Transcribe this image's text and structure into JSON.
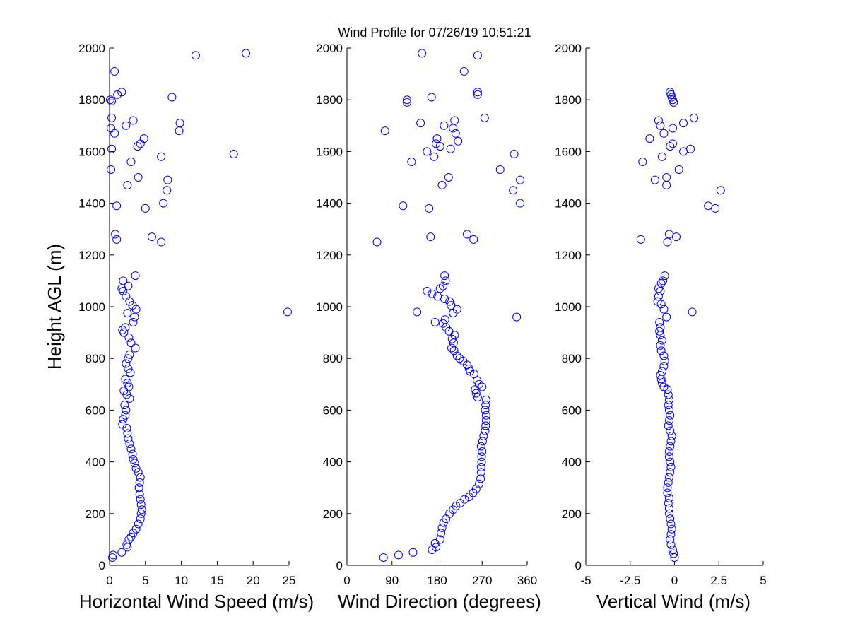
{
  "figure": {
    "title": "Wind Profile for  07/26/19 10:51:21"
  },
  "chart_data": [
    {
      "type": "scatter",
      "xlabel": "Horizontal Wind Speed (m/s)",
      "ylabel": "Height AGL (m)",
      "xlim": [
        0,
        25
      ],
      "ylim": [
        0,
        2000
      ],
      "xticks": [
        0,
        5,
        10,
        15,
        20,
        25
      ],
      "xtick_labels": [
        "0",
        "5",
        "10",
        "15",
        "20",
        "25"
      ],
      "yticks": [
        0,
        200,
        400,
        600,
        800,
        1000,
        1200,
        1400,
        1600,
        1800,
        2000
      ],
      "ytick_labels": [
        "0",
        "200",
        "400",
        "600",
        "800",
        "1000",
        "1200",
        "1400",
        "1600",
        "1800",
        "2000"
      ],
      "marker": "circle",
      "color": "#0000ff",
      "points": [
        [
          0.4,
          30
        ],
        [
          0.5,
          40
        ],
        [
          1.7,
          50
        ],
        [
          2.5,
          70
        ],
        [
          2.4,
          80
        ],
        [
          2.7,
          100
        ],
        [
          3.0,
          110
        ],
        [
          3.3,
          125
        ],
        [
          3.7,
          140
        ],
        [
          4.0,
          160
        ],
        [
          4.3,
          180
        ],
        [
          4.4,
          200
        ],
        [
          4.5,
          215
        ],
        [
          4.4,
          235
        ],
        [
          4.3,
          255
        ],
        [
          4.2,
          275
        ],
        [
          4.1,
          300
        ],
        [
          4.2,
          320
        ],
        [
          4.3,
          340
        ],
        [
          4.0,
          360
        ],
        [
          3.7,
          375
        ],
        [
          3.5,
          395
        ],
        [
          3.3,
          410
        ],
        [
          3.2,
          430
        ],
        [
          3.0,
          450
        ],
        [
          2.8,
          470
        ],
        [
          2.6,
          490
        ],
        [
          2.5,
          510
        ],
        [
          2.4,
          530
        ],
        [
          1.8,
          545
        ],
        [
          1.9,
          565
        ],
        [
          2.2,
          580
        ],
        [
          2.3,
          600
        ],
        [
          2.1,
          620
        ],
        [
          2.8,
          645
        ],
        [
          2.4,
          660
        ],
        [
          2.0,
          675
        ],
        [
          2.7,
          690
        ],
        [
          2.5,
          705
        ],
        [
          2.2,
          720
        ],
        [
          2.9,
          745
        ],
        [
          2.6,
          760
        ],
        [
          2.3,
          780
        ],
        [
          2.6,
          800
        ],
        [
          2.8,
          815
        ],
        [
          3.6,
          840
        ],
        [
          3.0,
          860
        ],
        [
          2.7,
          880
        ],
        [
          2.0,
          900
        ],
        [
          1.8,
          910
        ],
        [
          2.2,
          920
        ],
        [
          3.3,
          940
        ],
        [
          3.5,
          960
        ],
        [
          2.5,
          975
        ],
        [
          3.7,
          990
        ],
        [
          3.2,
          1005
        ],
        [
          2.8,
          1020
        ],
        [
          2.3,
          1040
        ],
        [
          1.9,
          1060
        ],
        [
          1.7,
          1070
        ],
        [
          2.6,
          1080
        ],
        [
          1.9,
          1100
        ],
        [
          3.6,
          1120
        ],
        [
          7.2,
          1250
        ],
        [
          1.0,
          1260
        ],
        [
          5.9,
          1270
        ],
        [
          0.8,
          1280
        ],
        [
          5.0,
          1380
        ],
        [
          1.0,
          1390
        ],
        [
          7.5,
          1400
        ],
        [
          8.0,
          1450
        ],
        [
          2.5,
          1470
        ],
        [
          8.1,
          1490
        ],
        [
          4.0,
          1500
        ],
        [
          0.2,
          1530
        ],
        [
          3.0,
          1560
        ],
        [
          7.2,
          1580
        ],
        [
          17.3,
          1590
        ],
        [
          0.3,
          1610
        ],
        [
          3.9,
          1620
        ],
        [
          4.3,
          1630
        ],
        [
          4.8,
          1650
        ],
        [
          0.7,
          1670
        ],
        [
          9.7,
          1680
        ],
        [
          0.2,
          1690
        ],
        [
          2.3,
          1700
        ],
        [
          9.8,
          1710
        ],
        [
          3.3,
          1720
        ],
        [
          0.3,
          1730
        ],
        [
          0.1,
          1800
        ],
        [
          0.3,
          1795
        ],
        [
          1.1,
          1820
        ],
        [
          8.7,
          1810
        ],
        [
          1.7,
          1830
        ],
        [
          0.7,
          1910
        ],
        [
          12.0,
          1972
        ],
        [
          19.0,
          1980
        ],
        [
          24.8,
          980
        ]
      ]
    },
    {
      "type": "scatter",
      "xlabel": "Wind Direction (degrees)",
      "ylabel": "",
      "xlim": [
        0,
        360
      ],
      "ylim": [
        0,
        2000
      ],
      "xticks": [
        0,
        90,
        180,
        270,
        360
      ],
      "xtick_labels": [
        "0",
        "90",
        "180",
        "270",
        "360"
      ],
      "yticks": [
        0,
        200,
        400,
        600,
        800,
        1000,
        1200,
        1400,
        1600,
        1800,
        2000
      ],
      "ytick_labels": [
        "0",
        "200",
        "400",
        "600",
        "800",
        "1000",
        "1200",
        "1400",
        "1600",
        "1800",
        "2000"
      ],
      "marker": "circle",
      "color": "#0000ff",
      "points": [
        [
          73,
          30
        ],
        [
          103,
          40
        ],
        [
          132,
          50
        ],
        [
          170,
          60
        ],
        [
          178,
          70
        ],
        [
          176,
          85
        ],
        [
          186,
          100
        ],
        [
          188,
          125
        ],
        [
          190,
          145
        ],
        [
          193,
          165
        ],
        [
          198,
          180
        ],
        [
          205,
          200
        ],
        [
          212,
          215
        ],
        [
          218,
          230
        ],
        [
          226,
          240
        ],
        [
          235,
          255
        ],
        [
          244,
          265
        ],
        [
          252,
          280
        ],
        [
          258,
          295
        ],
        [
          264,
          315
        ],
        [
          267,
          335
        ],
        [
          268,
          360
        ],
        [
          268,
          380
        ],
        [
          269,
          400
        ],
        [
          269,
          420
        ],
        [
          270,
          440
        ],
        [
          268,
          460
        ],
        [
          271,
          480
        ],
        [
          273,
          500
        ],
        [
          276,
          520
        ],
        [
          277,
          540
        ],
        [
          278,
          560
        ],
        [
          278,
          580
        ],
        [
          276,
          600
        ],
        [
          277,
          620
        ],
        [
          278,
          640
        ],
        [
          261,
          650
        ],
        [
          258,
          665
        ],
        [
          256,
          680
        ],
        [
          270,
          690
        ],
        [
          264,
          700
        ],
        [
          260,
          715
        ],
        [
          254,
          740
        ],
        [
          246,
          750
        ],
        [
          244,
          760
        ],
        [
          240,
          775
        ],
        [
          232,
          790
        ],
        [
          225,
          800
        ],
        [
          220,
          810
        ],
        [
          214,
          830
        ],
        [
          209,
          840
        ],
        [
          213,
          860
        ],
        [
          210,
          875
        ],
        [
          215,
          890
        ],
        [
          204,
          905
        ],
        [
          198,
          920
        ],
        [
          192,
          935
        ],
        [
          196,
          950
        ],
        [
          212,
          975
        ],
        [
          220,
          990
        ],
        [
          208,
          1005
        ],
        [
          205,
          1020
        ],
        [
          195,
          1030
        ],
        [
          181,
          1040
        ],
        [
          170,
          1050
        ],
        [
          160,
          1060
        ],
        [
          186,
          1070
        ],
        [
          192,
          1080
        ],
        [
          197,
          1100
        ],
        [
          195,
          1120
        ],
        [
          140,
          980
        ],
        [
          176,
          940
        ],
        [
          339,
          960
        ],
        [
          60,
          1250
        ],
        [
          167,
          1270
        ],
        [
          240,
          1280
        ],
        [
          253,
          1260
        ],
        [
          112,
          1390
        ],
        [
          164,
          1380
        ],
        [
          346,
          1400
        ],
        [
          332,
          1450
        ],
        [
          190,
          1470
        ],
        [
          346,
          1490
        ],
        [
          203,
          1500
        ],
        [
          306,
          1530
        ],
        [
          129,
          1560
        ],
        [
          174,
          1580
        ],
        [
          334,
          1590
        ],
        [
          160,
          1600
        ],
        [
          186,
          1620
        ],
        [
          178,
          1630
        ],
        [
          222,
          1640
        ],
        [
          180,
          1650
        ],
        [
          217,
          1670
        ],
        [
          76,
          1680
        ],
        [
          212,
          1690
        ],
        [
          147,
          1710
        ],
        [
          194,
          1700
        ],
        [
          215,
          1720
        ],
        [
          275,
          1730
        ],
        [
          120,
          1790
        ],
        [
          120,
          1800
        ],
        [
          169,
          1810
        ],
        [
          261,
          1820
        ],
        [
          261,
          1830
        ],
        [
          234,
          1910
        ],
        [
          150,
          1980
        ],
        [
          261,
          1972
        ],
        [
          207,
          1610
        ]
      ]
    },
    {
      "type": "scatter",
      "xlabel": "Vertical Wind (m/s)",
      "ylabel": "",
      "xlim": [
        -5,
        5
      ],
      "ylim": [
        0,
        2000
      ],
      "xticks": [
        -5,
        -2.5,
        0,
        2.5,
        5
      ],
      "xtick_labels": [
        "-5",
        "-2.5",
        "0",
        "2.5",
        "5"
      ],
      "yticks": [
        0,
        200,
        400,
        600,
        800,
        1000,
        1200,
        1400,
        1600,
        1800,
        2000
      ],
      "ytick_labels": [
        "0",
        "200",
        "400",
        "600",
        "800",
        "1000",
        "1200",
        "1400",
        "1600",
        "1800",
        "2000"
      ],
      "marker": "circle",
      "color": "#0000ff",
      "points": [
        [
          0.0,
          30
        ],
        [
          -0.05,
          45
        ],
        [
          -0.1,
          60
        ],
        [
          -0.2,
          80
        ],
        [
          -0.25,
          100
        ],
        [
          -0.2,
          120
        ],
        [
          -0.15,
          140
        ],
        [
          -0.2,
          160
        ],
        [
          -0.25,
          180
        ],
        [
          -0.3,
          200
        ],
        [
          -0.3,
          220
        ],
        [
          -0.35,
          240
        ],
        [
          -0.3,
          260
        ],
        [
          -0.4,
          280
        ],
        [
          -0.4,
          300
        ],
        [
          -0.35,
          320
        ],
        [
          -0.3,
          340
        ],
        [
          -0.25,
          360
        ],
        [
          -0.2,
          380
        ],
        [
          -0.25,
          400
        ],
        [
          -0.3,
          420
        ],
        [
          -0.3,
          440
        ],
        [
          -0.25,
          460
        ],
        [
          -0.2,
          480
        ],
        [
          -0.15,
          500
        ],
        [
          -0.25,
          520
        ],
        [
          -0.35,
          540
        ],
        [
          -0.3,
          560
        ],
        [
          -0.25,
          580
        ],
        [
          -0.3,
          600
        ],
        [
          -0.35,
          620
        ],
        [
          -0.3,
          640
        ],
        [
          -0.35,
          660
        ],
        [
          -0.4,
          680
        ],
        [
          -0.6,
          690
        ],
        [
          -0.7,
          705
        ],
        [
          -0.75,
          720
        ],
        [
          -0.8,
          735
        ],
        [
          -0.7,
          750
        ],
        [
          -0.6,
          770
        ],
        [
          -0.55,
          790
        ],
        [
          -0.6,
          810
        ],
        [
          -0.75,
          830
        ],
        [
          -0.8,
          850
        ],
        [
          -0.7,
          870
        ],
        [
          -0.8,
          890
        ],
        [
          -0.85,
          905
        ],
        [
          -0.8,
          920
        ],
        [
          -0.85,
          940
        ],
        [
          -0.45,
          960
        ],
        [
          -0.6,
          990
        ],
        [
          -0.75,
          1010
        ],
        [
          -0.95,
          1020
        ],
        [
          -0.9,
          1040
        ],
        [
          -0.8,
          1060
        ],
        [
          -0.9,
          1070
        ],
        [
          -0.75,
          1090
        ],
        [
          -0.65,
          1100
        ],
        [
          -0.55,
          1120
        ],
        [
          1.0,
          980
        ],
        [
          -1.9,
          1260
        ],
        [
          -0.4,
          1250
        ],
        [
          -0.3,
          1280
        ],
        [
          0.1,
          1270
        ],
        [
          2.3,
          1380
        ],
        [
          1.9,
          1390
        ],
        [
          2.6,
          1450
        ],
        [
          -0.45,
          1470
        ],
        [
          -1.1,
          1490
        ],
        [
          -0.45,
          1500
        ],
        [
          0.25,
          1530
        ],
        [
          -1.8,
          1560
        ],
        [
          -0.7,
          1580
        ],
        [
          0.5,
          1600
        ],
        [
          0.9,
          1610
        ],
        [
          -0.25,
          1620
        ],
        [
          -0.1,
          1630
        ],
        [
          -1.4,
          1650
        ],
        [
          -0.6,
          1670
        ],
        [
          -0.1,
          1690
        ],
        [
          -0.8,
          1700
        ],
        [
          0.5,
          1710
        ],
        [
          -0.9,
          1720
        ],
        [
          1.1,
          1730
        ],
        [
          -0.05,
          1790
        ],
        [
          -0.1,
          1800
        ],
        [
          -0.2,
          1820
        ],
        [
          -0.25,
          1830
        ],
        [
          -0.15,
          1810
        ]
      ]
    }
  ]
}
